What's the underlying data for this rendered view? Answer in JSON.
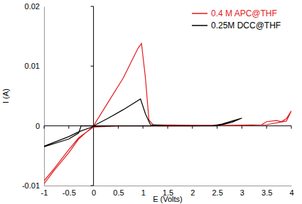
{
  "chart_data": {
    "type": "line",
    "x_label": "E (Volts)",
    "y_label": "I (A)",
    "xlim": [
      -1,
      4
    ],
    "xticks": [
      -1,
      -0.5,
      0,
      0.5,
      1,
      1.5,
      2,
      2.5,
      3,
      3.5,
      4
    ],
    "ylim": [
      -0.01,
      0.02
    ],
    "yticks": [
      -0.01,
      0,
      0.01,
      0.02
    ],
    "grid": false,
    "legend": "upper right",
    "series": [
      {
        "name": "0.4 M  APC@THF",
        "color": "#e41a1c",
        "x": [
          -1,
          -0.8,
          -0.5,
          -0.3,
          0,
          0.3,
          0.6,
          0.9,
          0.97,
          1.05,
          1.12,
          1.2,
          2,
          3,
          3.4,
          3.5,
          3.7,
          3.8,
          3.9,
          4,
          3.9,
          3.5,
          2,
          1,
          0.5,
          0,
          -0.3,
          -0.5,
          -0.8,
          -1
        ],
        "values": [
          -0.0097,
          -0.0075,
          -0.0045,
          -0.0022,
          0,
          0.004,
          0.008,
          0.013,
          0.0138,
          0.008,
          0.001,
          0.0002,
          0.0001,
          0.0001,
          0.0002,
          0.0007,
          0.0009,
          0.0007,
          0.0012,
          0.0025,
          0.0008,
          0.0002,
          0,
          0,
          0,
          -0.0002,
          -0.002,
          -0.004,
          -0.0072,
          -0.0092
        ]
      },
      {
        "name": "0.25M DCC@THF",
        "color": "#000000",
        "x": [
          -1,
          -0.5,
          -0.3,
          -0.25,
          0,
          0.3,
          0.6,
          0.95,
          1.05,
          1.15,
          1.5,
          2.4,
          2.6,
          2.8,
          3,
          2.8,
          2.5,
          1.5,
          0.5,
          0,
          -0.3,
          -0.5,
          -1
        ],
        "values": [
          -0.0035,
          -0.0022,
          -0.0012,
          0,
          0,
          0.0013,
          0.0027,
          0.0045,
          0.002,
          0.0002,
          0,
          0,
          0.0003,
          0.0008,
          0.0013,
          0.0006,
          0,
          0,
          0,
          -0.0001,
          -0.001,
          -0.0018,
          -0.0034
        ]
      }
    ]
  }
}
